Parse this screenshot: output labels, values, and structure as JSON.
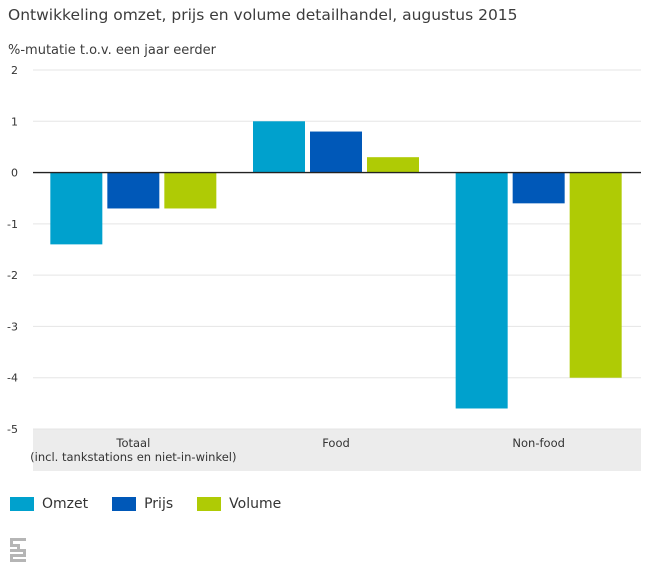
{
  "colors": {
    "Omzet": "#00a1cd",
    "Prijs": "#0058b8",
    "Volume": "#afcb05",
    "band": "#ececec",
    "grid": "#e5e5e5",
    "zero": "#222222"
  },
  "logo": {
    "icon": "cbs-logo-icon"
  },
  "chart_data": {
    "type": "bar",
    "title": "Ontwikkeling omzet, prijs en volume detailhandel, augustus 2015",
    "ylabel": "%-mutatie t.o.v. een jaar eerder",
    "categories": [
      [
        "Totaal",
        "(incl. tankstations en niet-in-winkel)"
      ],
      [
        "Food"
      ],
      [
        "Non-food"
      ]
    ],
    "series": [
      {
        "name": "Omzet",
        "values": [
          -1.4,
          1.0,
          -4.6
        ]
      },
      {
        "name": "Prijs",
        "values": [
          -0.7,
          0.8,
          -0.6
        ]
      },
      {
        "name": "Volume",
        "values": [
          -0.7,
          0.3,
          -4.0
        ]
      }
    ],
    "ylim": [
      -5,
      2
    ],
    "yticks": [
      2,
      1,
      0,
      -1,
      -2,
      -3,
      -4,
      -5
    ],
    "grid": true,
    "legend_position": "bottom-left"
  }
}
